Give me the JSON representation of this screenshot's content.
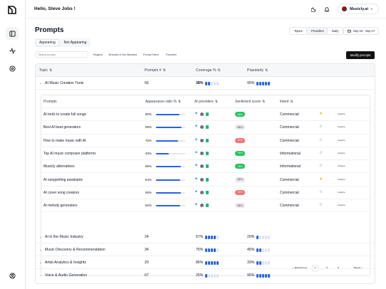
{
  "header": {
    "greeting": "Hello, Steve Jobs !",
    "account_name": "Musicly.ai"
  },
  "page": {
    "title": "Prompts",
    "segments": [
      "Topics",
      "Providers",
      "Daily"
    ],
    "date_range": "Sep 10 - Sep 17",
    "tabs": [
      "Appearing",
      "Not Appearing"
    ],
    "search_placeholder": "Search prompt",
    "filters": [
      "Regions",
      "Branded & Non Branded",
      "Prompt Intent",
      "Favorites"
    ],
    "modify_label": "Modify prompts"
  },
  "table": {
    "headers": {
      "topic": "Topic",
      "prompts": "Prompts #",
      "coverage": "Coverage %",
      "popularity": "Popularity"
    },
    "groups": [
      {
        "topic": "AI Music Creation Tools",
        "count": "56",
        "coverage": "38%",
        "coverage_level": 2,
        "popularity": "95%",
        "popularity_level": 5,
        "expanded": true
      },
      {
        "topic": "AI in the Music Industry",
        "count": "24",
        "coverage": "67%",
        "coverage_level": 4,
        "popularity": "20%",
        "popularity_level": 1
      },
      {
        "topic": "Music Discovery & Recommendation",
        "count": "34",
        "coverage": "75%",
        "coverage_level": 4,
        "popularity": "45%",
        "popularity_level": 2
      },
      {
        "topic": "Artist Analytics & Insights",
        "count": "20",
        "coverage": "86%",
        "coverage_level": 5,
        "popularity": "33%",
        "popularity_level": 2
      },
      {
        "topic": "Voice & Audio Generation",
        "count": "67",
        "coverage": "25%",
        "coverage_level": 1,
        "popularity": "95%",
        "popularity_level": 5
      }
    ],
    "inner_headers": {
      "prompts": "Prompts",
      "appearance": "Appearance ratio %",
      "providers": "AI providers",
      "sentiment": "Sentiment score",
      "intent": "Intent"
    },
    "prompts": [
      {
        "name": "AI tools to create full songs",
        "appearance": "80%",
        "appearance_value": 0.8,
        "sentiment": "63%",
        "sentiment_color": "#22c55e",
        "sentiment_text": "#ffffff",
        "intent": "Commercial",
        "favorite": true,
        "action": "Analyze"
      },
      {
        "name": "Best AI beat generators",
        "appearance": "89%",
        "appearance_value": 0.89,
        "sentiment": "56%",
        "sentiment_color": "#e5e7eb",
        "sentiment_text": "#374151",
        "intent": "Commercial",
        "favorite": false,
        "action": "Analyze"
      },
      {
        "name": "How to make music with AI",
        "appearance": "75%",
        "appearance_value": 0.75,
        "sentiment": "29%",
        "sentiment_color": "#f87171",
        "sentiment_text": "#ffffff",
        "intent": "Commercial",
        "favorite": false,
        "action": "Analyze"
      },
      {
        "name": "Top AI music composer platforms",
        "appearance": "45%",
        "appearance_value": 0.45,
        "sentiment": "75%",
        "sentiment_color": "#22c55e",
        "sentiment_text": "#ffffff",
        "intent": "Informational",
        "favorite": false,
        "action": "Analyze"
      },
      {
        "name": "Musicly alternatives",
        "appearance": "86%",
        "appearance_value": 0.86,
        "sentiment": "73%",
        "sentiment_color": "#22c55e",
        "sentiment_text": "#ffffff",
        "intent": "Informational",
        "favorite": false,
        "action": "Analyze"
      },
      {
        "name": "AI songwriting assistants",
        "appearance": "84%",
        "appearance_value": 0.84,
        "sentiment": "45%",
        "sentiment_color": "#e5e7eb",
        "sentiment_text": "#374151",
        "intent": "Commercial",
        "favorite": true,
        "action": "Analyze"
      },
      {
        "name": "AI cover song creators",
        "appearance": "85%",
        "appearance_value": 0.85,
        "sentiment": "30%",
        "sentiment_color": "#f87171",
        "sentiment_text": "#ffffff",
        "intent": "Commercial",
        "favorite": false,
        "action": "Analyze"
      },
      {
        "name": "AI melody generators",
        "appearance": "82%",
        "appearance_value": 0.82,
        "sentiment": "59%",
        "sentiment_color": "#e5e7eb",
        "sentiment_text": "#374151",
        "intent": "Commercial",
        "favorite": false,
        "action": "Analyze"
      }
    ],
    "pagination": {
      "previous": "Previous",
      "pages": [
        "1",
        "2",
        "3"
      ],
      "ellipsis": "...",
      "next": "Next",
      "current": "1"
    }
  },
  "colors": {
    "accent": "#2563eb",
    "provider_a": "#3b82f6",
    "provider_b": "#6b7280",
    "provider_c": "#10b981",
    "star": "#f5b700"
  },
  "icons": {
    "sidebar": [
      "panel-icon",
      "activity-icon",
      "target-icon"
    ],
    "bottom": "user-circle-icon",
    "topbar": [
      "moon-icon",
      "bell-icon"
    ]
  }
}
